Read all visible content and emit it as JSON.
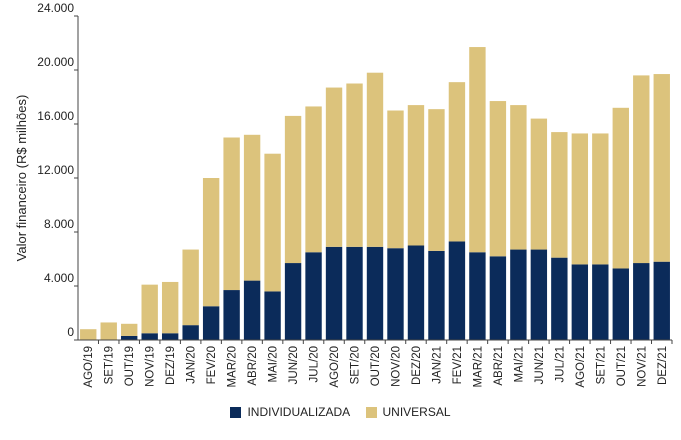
{
  "chart_data": {
    "type": "bar",
    "stacked": true,
    "ylabel": "Valor financeiro (R$ milhões)",
    "xlabel": "",
    "ylim": [
      0,
      24000
    ],
    "yticks": [
      "0",
      "4.000",
      "8.000",
      "12.000",
      "16.000",
      "20.000",
      "24.000"
    ],
    "grid": false,
    "legend_position": "bottom",
    "categories": [
      "AGO/19",
      "SET/19",
      "OUT/19",
      "NOV/19",
      "DEZ/19",
      "JAN/20",
      "FEV/20",
      "MAR/20",
      "ABR/20",
      "MAI/20",
      "JUN/20",
      "JUL/20",
      "AGO/20",
      "SET/20",
      "OUT/20",
      "NOV/20",
      "DEZ/20",
      "JAN/21",
      "FEV/21",
      "MAR/21",
      "ABR/21",
      "MAI/21",
      "JUN/21",
      "JUL/21",
      "AGO/21",
      "SET/21",
      "OUT/21",
      "NOV/21",
      "DEZ/21"
    ],
    "series": [
      {
        "name": "INDIVIDUALIZADA",
        "color": "#0b2b5a",
        "values": [
          0,
          0,
          300,
          500,
          500,
          1100,
          2500,
          3700,
          4400,
          3600,
          5700,
          6500,
          6900,
          6900,
          6900,
          6800,
          7000,
          6600,
          7300,
          6500,
          6200,
          6700,
          6700,
          6100,
          5600,
          5600,
          5300,
          5700,
          5800
        ]
      },
      {
        "name": "UNIVERSAL",
        "color": "#dcc37c",
        "values": [
          800,
          1300,
          900,
          3600,
          3800,
          5600,
          9500,
          11300,
          10800,
          10200,
          10900,
          10800,
          11800,
          12100,
          12900,
          10200,
          10400,
          10500,
          11800,
          15200,
          11500,
          10700,
          9700,
          9300,
          9700,
          9700,
          11900,
          13900,
          13900
        ]
      }
    ]
  }
}
